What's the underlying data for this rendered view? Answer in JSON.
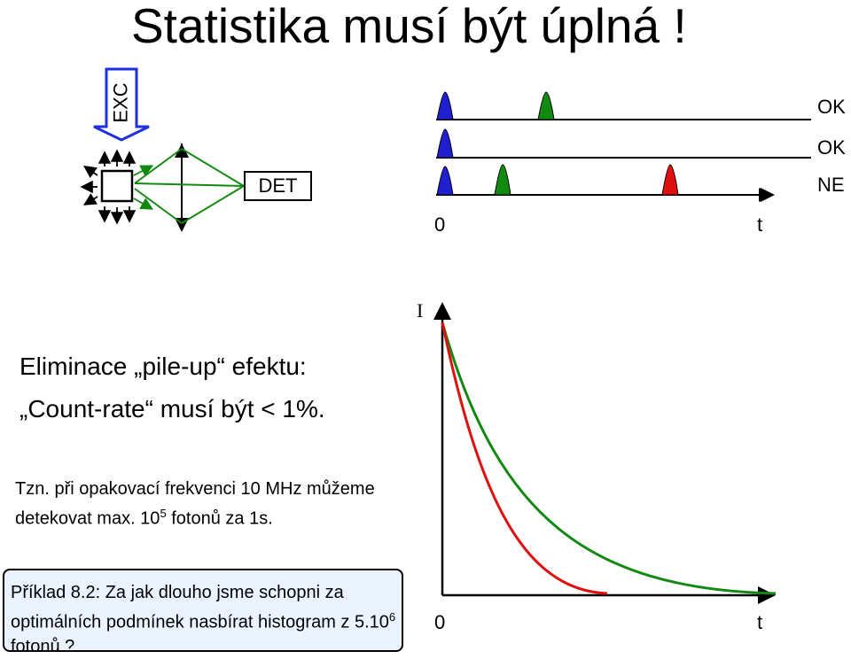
{
  "title": "Statistika musí být úplná !",
  "excitation": {
    "label": "EXC"
  },
  "detector": {
    "label": "DET"
  },
  "timeline": {
    "tracks": [
      {
        "status": "OK"
      },
      {
        "status": "OK"
      },
      {
        "status": "NE"
      }
    ],
    "origin_label": "0",
    "time_label": "t"
  },
  "pileup": {
    "line1": "Eliminace „pile-up“ efektu:",
    "line2": "„Count-rate“ musí být < 1%."
  },
  "note": {
    "part1": "Tzn. při opakovací frekvenci 10 MHz můžeme detekovat max. 10",
    "sup": "5",
    "part2": " fotonů za 1s."
  },
  "example": {
    "part1": "Příklad 8.2: Za jak dlouho jsme schopni za optimálních podmínek nasbírat histogram z 5.10",
    "sup": "6",
    "part2": " fotonů ?"
  },
  "decay_plot": {
    "y_label": "I",
    "x_origin_label": "0",
    "x_label": "t"
  },
  "colors": {
    "blue": "#1f1fd0",
    "green": "#128a12",
    "red": "#e01010",
    "exc_arrow": "#1d2fe0",
    "highlight_bg": "#eaf3ff"
  }
}
